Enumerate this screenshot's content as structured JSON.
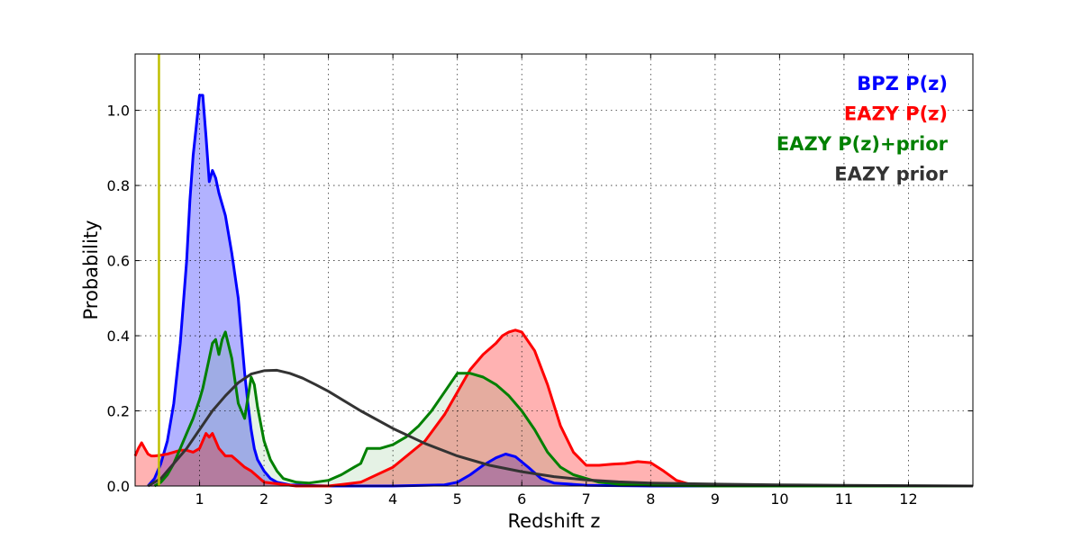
{
  "chart_data": {
    "type": "area",
    "title": "",
    "xlabel": "Redshift z",
    "ylabel": "Probability",
    "xlim": [
      0,
      13
    ],
    "ylim": [
      0,
      1.15
    ],
    "x_ticks": [
      1,
      2,
      3,
      4,
      5,
      6,
      7,
      8,
      9,
      10,
      11,
      12
    ],
    "x_tick_labels": [
      "1",
      "2",
      "3",
      "4",
      "5",
      "6",
      "7",
      "8",
      "9",
      "10",
      "11",
      "12"
    ],
    "y_ticks": [
      0,
      0.2,
      0.4,
      0.6,
      0.8,
      1.0
    ],
    "y_tick_labels": [
      "0.0",
      "0.2",
      "0.4",
      "0.6",
      "0.8",
      "1.0"
    ],
    "grid": true,
    "legend_position": "top-right",
    "vertical_line": {
      "x": 0.37,
      "color": "#bfbf00"
    },
    "series": [
      {
        "name": "BPZ P(z)",
        "color": "#0000ff",
        "fill": true,
        "x": [
          0.2,
          0.3,
          0.4,
          0.5,
          0.6,
          0.7,
          0.8,
          0.85,
          0.9,
          0.95,
          1.0,
          1.05,
          1.1,
          1.15,
          1.2,
          1.25,
          1.3,
          1.4,
          1.5,
          1.6,
          1.65,
          1.7,
          1.75,
          1.8,
          1.85,
          1.9,
          2.0,
          2.1,
          2.2,
          2.4,
          3.0,
          4.0,
          4.8,
          5.0,
          5.2,
          5.4,
          5.6,
          5.75,
          5.9,
          6.1,
          6.3,
          6.5,
          7.0,
          8.0,
          10.0,
          13.0
        ],
        "y": [
          0.0,
          0.02,
          0.06,
          0.12,
          0.22,
          0.38,
          0.6,
          0.76,
          0.88,
          0.96,
          1.04,
          1.04,
          0.93,
          0.81,
          0.84,
          0.82,
          0.78,
          0.72,
          0.62,
          0.5,
          0.4,
          0.3,
          0.22,
          0.15,
          0.1,
          0.07,
          0.04,
          0.02,
          0.01,
          0.003,
          0.0,
          0.0,
          0.003,
          0.01,
          0.03,
          0.055,
          0.075,
          0.085,
          0.078,
          0.05,
          0.02,
          0.008,
          0.002,
          0.0,
          0.0,
          0.0
        ]
      },
      {
        "name": "EAZY P(z)",
        "color": "#ff0000",
        "fill": true,
        "x": [
          0.0,
          0.05,
          0.1,
          0.15,
          0.2,
          0.25,
          0.3,
          0.4,
          0.5,
          0.6,
          0.7,
          0.8,
          0.9,
          1.0,
          1.05,
          1.1,
          1.15,
          1.2,
          1.25,
          1.3,
          1.35,
          1.4,
          1.5,
          1.6,
          1.7,
          1.8,
          2.0,
          2.5,
          3.0,
          3.5,
          4.0,
          4.5,
          4.8,
          5.0,
          5.2,
          5.4,
          5.6,
          5.7,
          5.8,
          5.9,
          6.0,
          6.2,
          6.4,
          6.6,
          6.8,
          7.0,
          7.2,
          7.4,
          7.6,
          7.8,
          8.0,
          8.2,
          8.4,
          8.6,
          9.0,
          10.0,
          11.0,
          12.0,
          13.0
        ],
        "y": [
          0.08,
          0.1,
          0.115,
          0.1,
          0.085,
          0.08,
          0.08,
          0.082,
          0.085,
          0.09,
          0.095,
          0.095,
          0.09,
          0.1,
          0.12,
          0.14,
          0.13,
          0.14,
          0.12,
          0.1,
          0.09,
          0.08,
          0.08,
          0.065,
          0.05,
          0.04,
          0.01,
          0.0,
          0.0,
          0.01,
          0.05,
          0.12,
          0.19,
          0.25,
          0.31,
          0.35,
          0.38,
          0.4,
          0.41,
          0.415,
          0.41,
          0.36,
          0.27,
          0.16,
          0.09,
          0.055,
          0.055,
          0.058,
          0.06,
          0.065,
          0.062,
          0.04,
          0.015,
          0.005,
          0.002,
          0.0,
          0.0,
          0.0,
          0.0
        ]
      },
      {
        "name": "EAZY P(z)+prior",
        "color": "#008000",
        "fill": true,
        "fill_opacity": 0.1,
        "x": [
          0.3,
          0.4,
          0.5,
          0.6,
          0.7,
          0.8,
          0.9,
          1.0,
          1.05,
          1.1,
          1.15,
          1.2,
          1.25,
          1.3,
          1.35,
          1.4,
          1.5,
          1.6,
          1.7,
          1.8,
          1.85,
          1.9,
          2.0,
          2.1,
          2.2,
          2.3,
          2.5,
          2.7,
          3.0,
          3.2,
          3.4,
          3.5,
          3.6,
          3.8,
          4.0,
          4.2,
          4.4,
          4.6,
          4.8,
          5.0,
          5.2,
          5.4,
          5.6,
          5.8,
          6.0,
          6.2,
          6.4,
          6.6,
          6.8,
          7.0,
          7.2,
          7.5,
          8.0,
          9.0,
          10.0,
          13.0
        ],
        "y": [
          0.0,
          0.01,
          0.03,
          0.06,
          0.1,
          0.14,
          0.18,
          0.23,
          0.26,
          0.3,
          0.34,
          0.38,
          0.39,
          0.35,
          0.39,
          0.41,
          0.34,
          0.22,
          0.18,
          0.29,
          0.27,
          0.21,
          0.12,
          0.07,
          0.04,
          0.02,
          0.01,
          0.008,
          0.015,
          0.03,
          0.05,
          0.06,
          0.1,
          0.1,
          0.11,
          0.13,
          0.16,
          0.2,
          0.25,
          0.3,
          0.3,
          0.29,
          0.27,
          0.24,
          0.2,
          0.15,
          0.09,
          0.05,
          0.03,
          0.02,
          0.01,
          0.005,
          0.002,
          0.0,
          0.0,
          0.0
        ]
      },
      {
        "name": "EAZY prior",
        "color": "#333333",
        "fill": false,
        "x": [
          0.2,
          0.4,
          0.6,
          0.8,
          1.0,
          1.2,
          1.4,
          1.6,
          1.8,
          2.0,
          2.2,
          2.4,
          2.6,
          2.8,
          3.0,
          3.5,
          4.0,
          4.5,
          5.0,
          5.5,
          6.0,
          6.5,
          7.0,
          7.5,
          8.0,
          9.0,
          10.0,
          11.0,
          12.0,
          13.0
        ],
        "y": [
          0.0,
          0.02,
          0.06,
          0.1,
          0.15,
          0.2,
          0.24,
          0.275,
          0.298,
          0.307,
          0.308,
          0.3,
          0.287,
          0.27,
          0.252,
          0.2,
          0.153,
          0.113,
          0.08,
          0.055,
          0.038,
          0.025,
          0.016,
          0.011,
          0.008,
          0.005,
          0.003,
          0.002,
          0.001,
          0.0
        ]
      }
    ]
  }
}
